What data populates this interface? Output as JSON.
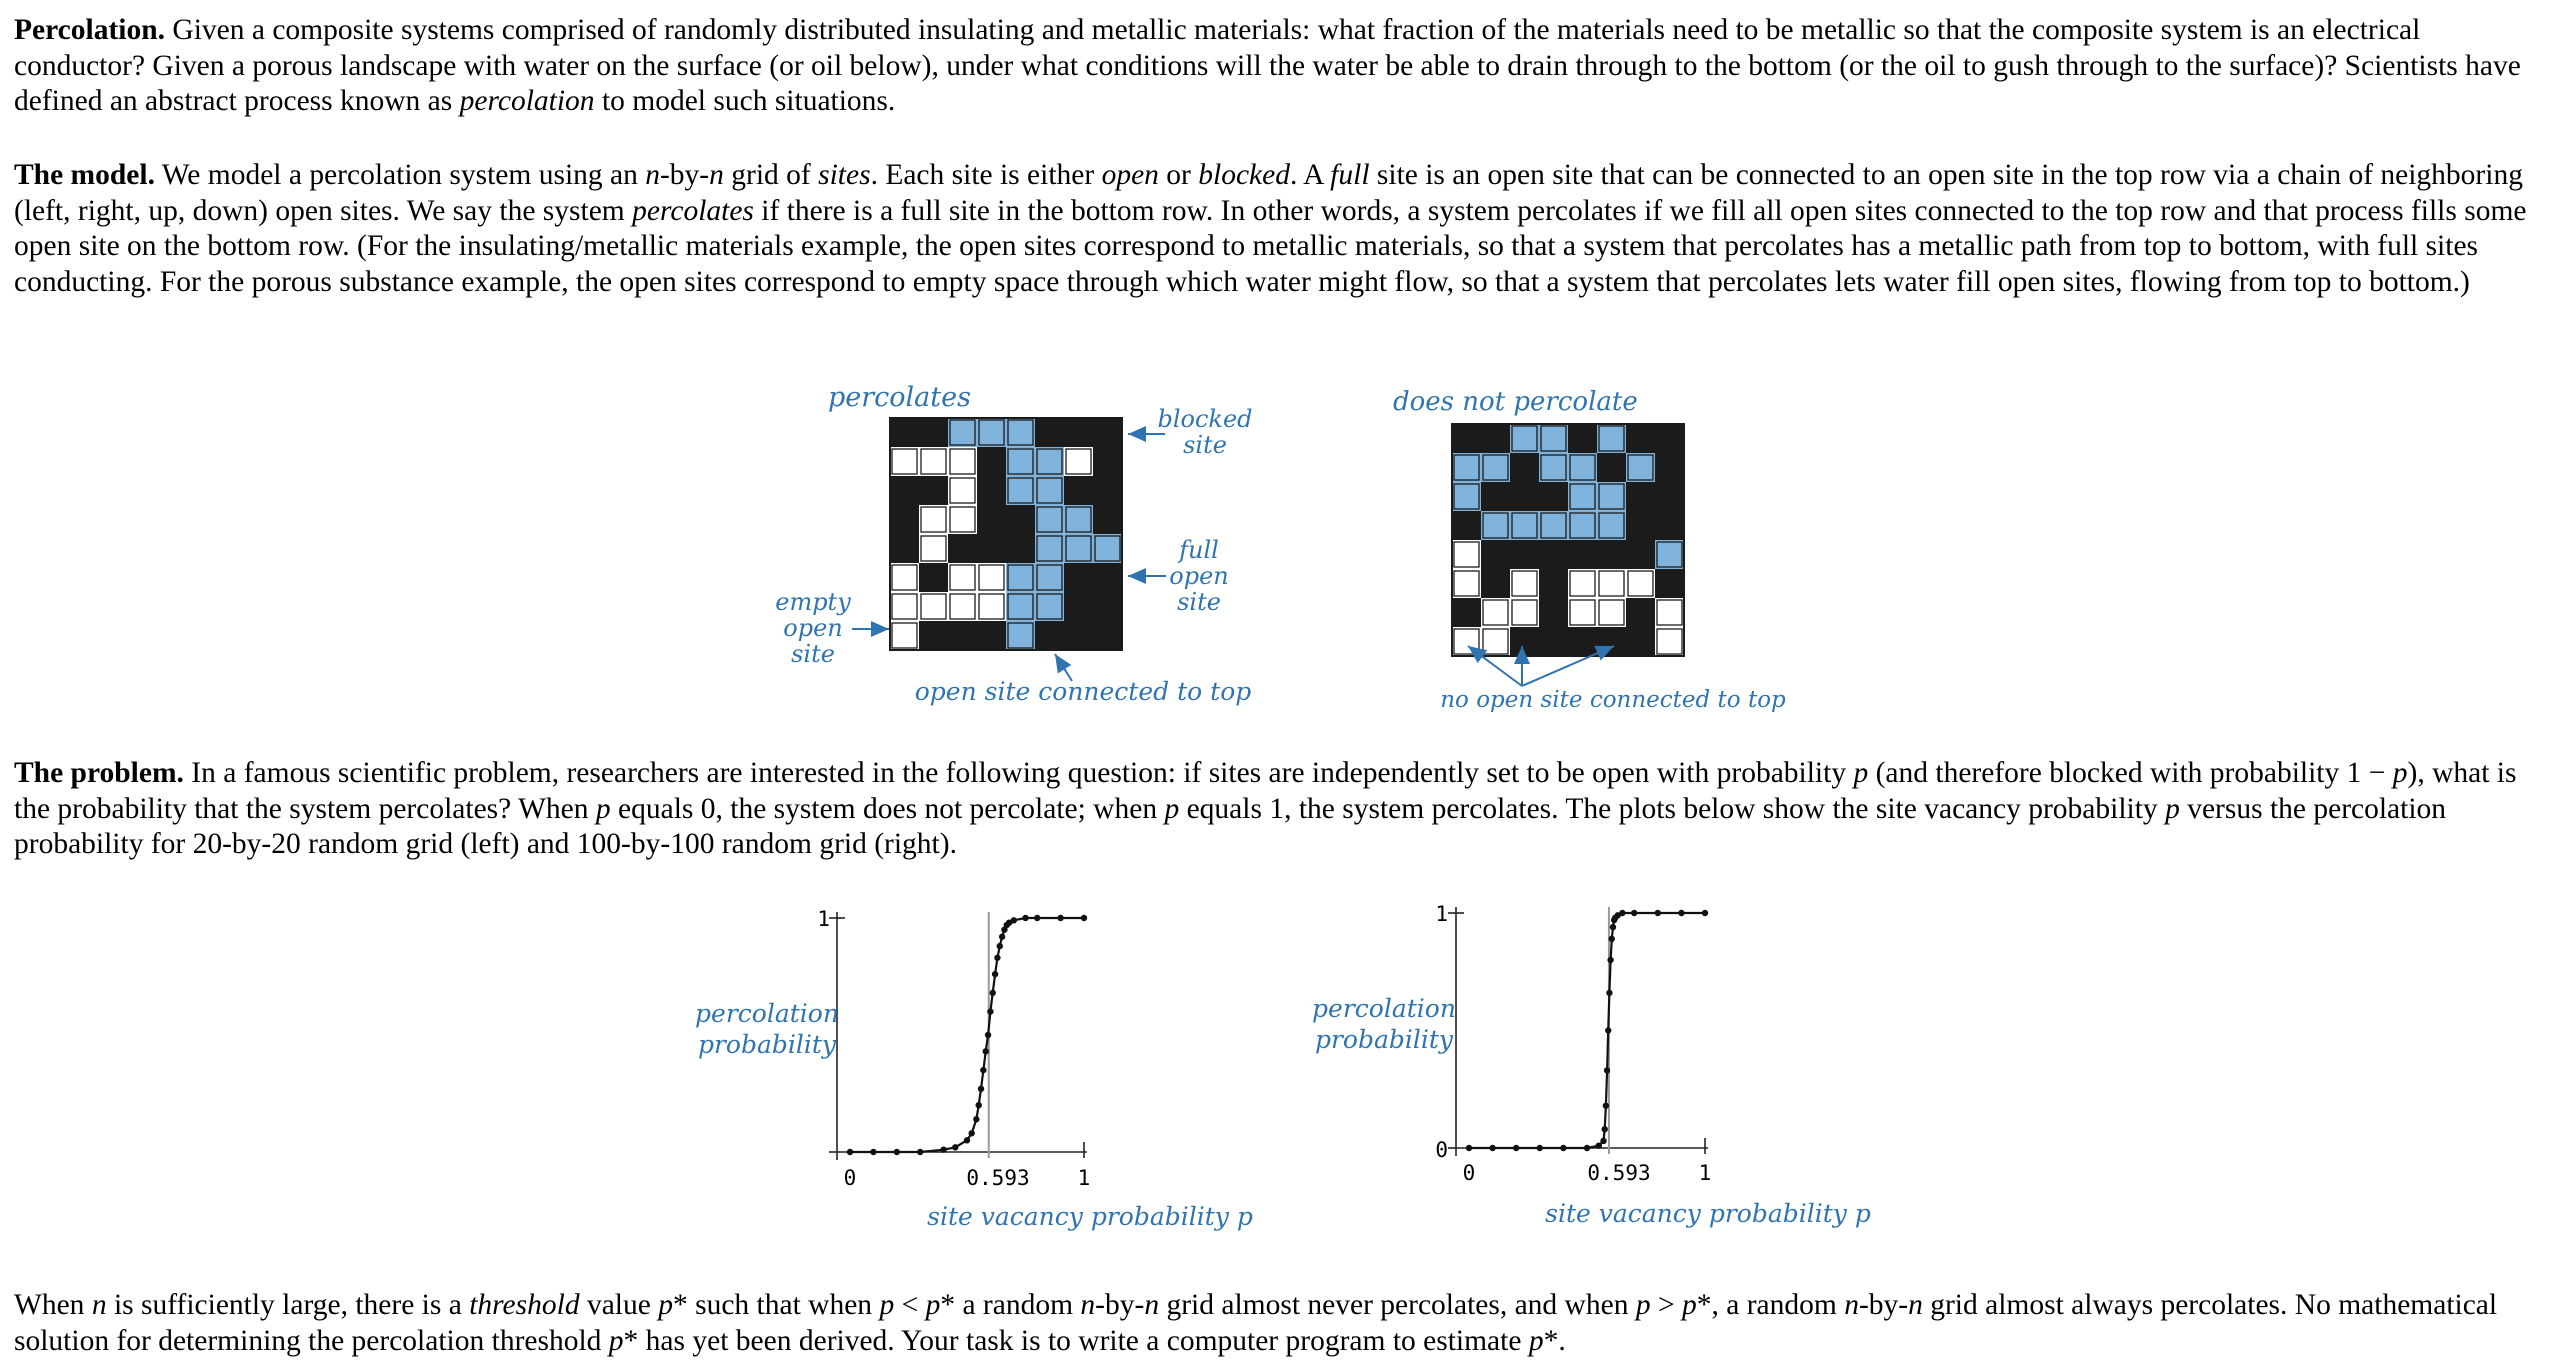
{
  "paragraphs": {
    "p1": {
      "head": "Percolation.",
      "t1": " Given a composite systems comprised of randomly distributed insulating and metallic materials: what fraction of the materials need to be metallic so that the composite system is an electrical conductor? Given a porous landscape with water on the surface (or oil below), under what conditions will the water be able to drain through to the bottom (or the oil to gush through to the surface)? Scientists have defined an abstract process known as ",
      "e1": "percolation",
      "t2": " to model such situations."
    },
    "p2": {
      "head": "The model.",
      "t1": " We model a percolation system using an ",
      "e1": "n",
      "t2": "-by-",
      "e2": "n",
      "t3": " grid of ",
      "e3": "sites",
      "t4": ". Each site is either ",
      "e4": "open",
      "t5": " or ",
      "e5": "blocked",
      "t6": ". A ",
      "e6": "full",
      "t7": " site is an open site that can be connected to an open site in the top row via a chain of neighboring (left, right, up, down) open sites. We say the system ",
      "e7": "percolates",
      "t8": " if there is a full site in the bottom row. In other words, a system percolates if we fill all open sites connected to the top row and that process fills some open site on the bottom row. (For the insulating/metallic materials example, the open sites correspond to metallic materials, so that a system that percolates has a metallic path from top to bottom, with full sites conducting. For the porous substance example, the open sites correspond to empty space through which water might flow, so that a system that percolates lets water fill open sites, flowing from top to bottom.)"
    },
    "p3": {
      "head": "The problem.",
      "t1": " In a famous scientific problem, researchers are interested in the following question: if sites are independently set to be open with probability ",
      "e1": "p",
      "t2": " (and therefore blocked with probability 1 − ",
      "e2": "p",
      "t3": "), what is the probability that the system percolates? When ",
      "e3": "p",
      "t4": " equals 0, the system does not percolate; when ",
      "e4": "p",
      "t5": " equals 1, the system percolates. The plots below show the site vacancy probability ",
      "e5": "p",
      "t6": " versus the percolation probability for 20-by-20 random grid (left) and 100-by-100 random grid (right)."
    },
    "p4": {
      "t1": "When ",
      "e1": "n",
      "t2": " is sufficiently large, there is a ",
      "e2": "threshold",
      "t3": " value ",
      "e3": "p",
      "t4": "* such that when ",
      "e4": "p",
      "t5": " < ",
      "e5": "p",
      "t6": "* a random ",
      "e6": "n",
      "t7": "-by-",
      "e7": "n",
      "t8": " grid almost never percolates, and when ",
      "e8": "p",
      "t9": " > ",
      "e9": "p",
      "t10": "*, a random ",
      "e10": "n",
      "t11": "-by-",
      "e11": "n",
      "t12": " grid almost always percolates. No mathematical solution for determining the percolation threshold ",
      "e12": "p",
      "t13": "* has yet been derived. Your task is to write a computer program to estimate ",
      "e13": "p",
      "t14": "*."
    }
  },
  "grid_figure": {
    "colors": {
      "blocked": "#1b1b1b",
      "full": "#7fb3dc",
      "empty": "#ffffff",
      "label": "#2f74b0"
    },
    "left": {
      "title": "percolates",
      "cells": [
        "BBFFFBBB",
        "EEEBFFEB",
        "BBEBFFBB",
        "BEEBBFFB",
        "BEBBBFFF",
        "EBEEFFBB",
        "EEEEFFBB",
        "EBBBFBBB"
      ],
      "blocked_label": [
        "blocked",
        "site"
      ],
      "full_label": [
        "full",
        "open",
        "site"
      ],
      "empty_label": [
        "empty",
        "open",
        "site"
      ],
      "bottom_label": "open site connected to top"
    },
    "right": {
      "title": "does not percolate",
      "cells": [
        "BBFFBFBB",
        "FFBFFBFB",
        "FBBBFFBB",
        "BFFFFFBB",
        "EBBBBBBF",
        "EBEBEEEB",
        "BEEBEEBE",
        "EEBBBBBE"
      ],
      "bottom_label": "no open site connected to top"
    }
  },
  "chart_data": [
    {
      "type": "line",
      "xlabel": "site vacancy probability p",
      "ylabel": "percolation probability",
      "xlim": [
        0,
        1
      ],
      "ylim": [
        0,
        1
      ],
      "xticks": [
        "0",
        "0.593",
        "1"
      ],
      "yticks": [
        "1"
      ],
      "threshold": 0.593,
      "x": [
        0,
        0.1,
        0.2,
        0.3,
        0.4,
        0.45,
        0.5,
        0.52,
        0.54,
        0.55,
        0.56,
        0.57,
        0.58,
        0.59,
        0.6,
        0.61,
        0.62,
        0.63,
        0.64,
        0.65,
        0.66,
        0.67,
        0.68,
        0.7,
        0.75,
        0.8,
        0.9,
        1.0
      ],
      "y": [
        0,
        0,
        0,
        0,
        0.01,
        0.02,
        0.05,
        0.08,
        0.14,
        0.2,
        0.27,
        0.35,
        0.43,
        0.5,
        0.6,
        0.68,
        0.76,
        0.83,
        0.88,
        0.92,
        0.95,
        0.97,
        0.98,
        0.99,
        1,
        1,
        1,
        1
      ]
    },
    {
      "type": "line",
      "xlabel": "site vacancy probability p",
      "ylabel": "percolation probability",
      "xlim": [
        0,
        1
      ],
      "ylim": [
        0,
        1
      ],
      "xticks": [
        "0",
        "0.593",
        "1"
      ],
      "yticks": [
        "0",
        "1"
      ],
      "threshold": 0.593,
      "x": [
        0,
        0.1,
        0.2,
        0.3,
        0.4,
        0.5,
        0.55,
        0.57,
        0.575,
        0.58,
        0.585,
        0.59,
        0.595,
        0.6,
        0.605,
        0.61,
        0.615,
        0.62,
        0.63,
        0.65,
        0.7,
        0.8,
        0.9,
        1.0
      ],
      "y": [
        0,
        0,
        0,
        0,
        0,
        0,
        0.01,
        0.03,
        0.08,
        0.18,
        0.33,
        0.5,
        0.66,
        0.8,
        0.89,
        0.94,
        0.97,
        0.98,
        0.99,
        1,
        1,
        1,
        1,
        1
      ]
    }
  ]
}
